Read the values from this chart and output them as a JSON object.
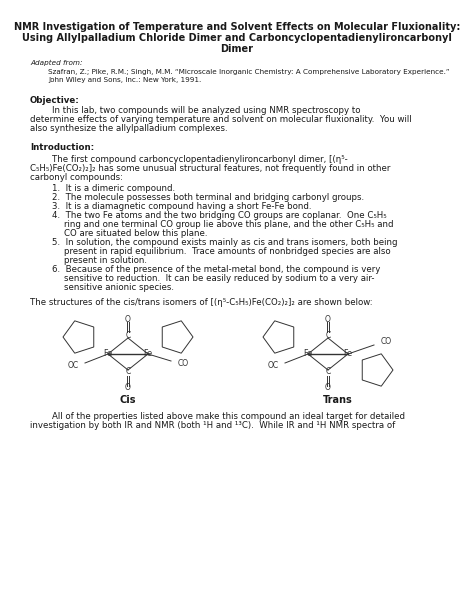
{
  "title_line1": "NMR Investigation of Temperature and Solvent Effects on Molecular Fluxionality:",
  "title_line2": "Using Allylpalladium Chloride Dimer and Carboncyclopentadienylironcarbonyl",
  "title_line3": "Dimer",
  "adapted_label": "Adapted from:",
  "ref_line1": "Szafran, Z.; Pike, R.M.; Singh, M.M. “Microscale Inorganic Chemistry: A Comprehensive Laboratory Experience.”",
  "ref_line2": "John Wiley and Sons, Inc.: New York, 1991.",
  "objective_header": "Objective:",
  "obj_line1": "        In this lab, two compounds will be analyzed using NMR spectroscopy to",
  "obj_line2": "determine effects of varying temperature and solvent on molecular fluxionality.  You will",
  "obj_line3": "also synthesize the allylpalladium complexes.",
  "intro_header": "Introduction:",
  "intro_p1": "        The first compound carboncyclopentadienylironcarbonyl dimer, [(η⁵-",
  "intro_p2": "C₅H₅)Fe(CO₂)₂]₂ has some unusual structural features, not frequently found in other",
  "intro_p3": "carbonyl compounds:",
  "b1": "1.  It is a dimeric compound.",
  "b2": "2.  The molecule possesses both terminal and bridging carbonyl groups.",
  "b3": "3.  It is a diamagnetic compound having a short Fe-Fe bond.",
  "b4a": "4.  The two Fe atoms and the two bridging CO groups are coplanar.  One C₅H₅",
  "b4b": "ring and one terminal CO group lie above this plane, and the other C₅H₅ and",
  "b4c": "CO are situated below this plane.",
  "b5a": "5.  In solution, the compound exists mainly as cis and trans isomers, both being",
  "b5b": "present in rapid equilibrium.  Trace amounts of nonbridged species are also",
  "b5c": "present in solution.",
  "b6a": "6.  Because of the presence of the metal-metal bond, the compound is very",
  "b6b": "sensitive to reduction.  It can be easily reduced by sodium to a very air-",
  "b6c": "sensitive anionic species.",
  "struct_line": "The structures of the cis/trans isomers of [(η⁵-C₅H₅)Fe(CO₂)₂]₂ are shown below:",
  "cis_label": "Cis",
  "trans_label": "Trans",
  "final_line1": "        All of the properties listed above make this compound an ideal target for detailed",
  "final_line2": "investigation by both IR and NMR (both ¹H and ¹³C).  While IR and ¹H NMR spectra of",
  "bg_color": "#ffffff",
  "text_color": "#1a1a1a",
  "title_fs": 7.0,
  "body_fs": 6.2,
  "ref_fs": 5.2,
  "header_fs": 6.2
}
